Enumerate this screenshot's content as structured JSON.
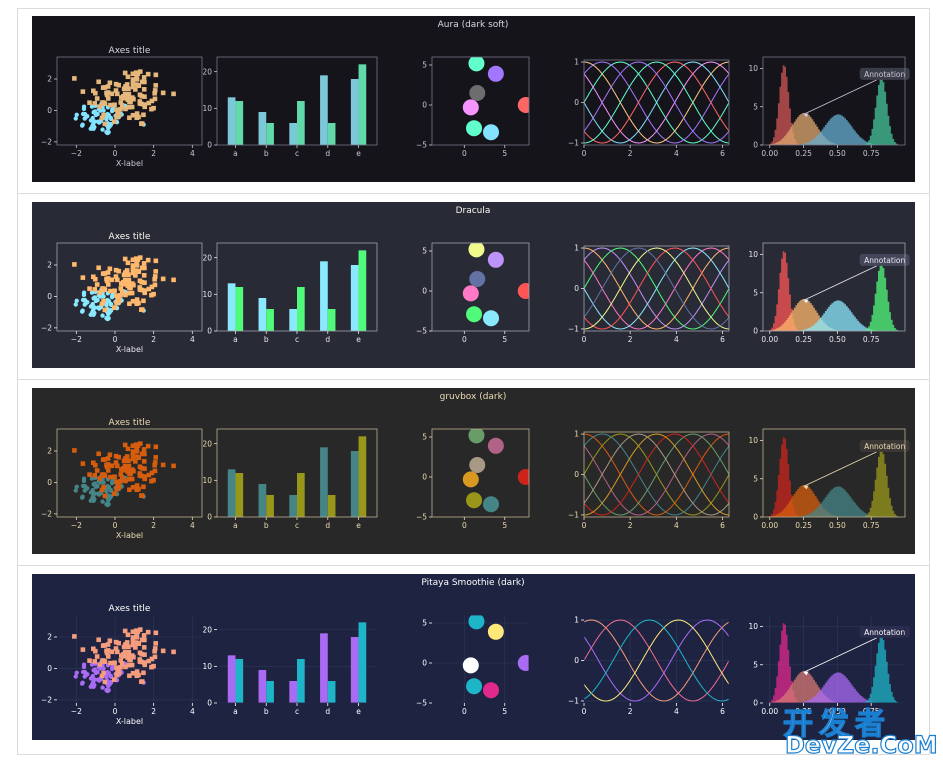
{
  "panels": [
    {
      "title": "Aura (dark soft)",
      "bg": "#15141b",
      "fg": "#c9c6d6",
      "spine": "#777486",
      "title_color": "#d8d6e3",
      "grid": null,
      "colors": [
        "#61ffca",
        "#a277ff",
        "#ffca85",
        "#f694ff",
        "#82e2ff",
        "#ff6767"
      ],
      "scatter_colors": [
        "#82e2ff",
        "#e6b77a",
        "#d9a063"
      ],
      "bar_colors": [
        "#7cc8d8",
        "#61d9a8"
      ],
      "circle_colors": [
        "#61ffca",
        "#82e2ff",
        "#f694ff",
        "#6d6d6d",
        "#a277ff",
        "#ff6767"
      ],
      "hist_colors": [
        "#d05555",
        "#e0a870",
        "#66aed0",
        "#45c49a"
      ],
      "annot_bg": "#3a3d48"
    },
    {
      "title": "Dracula",
      "bg": "#282a36",
      "fg": "#e8e8f0",
      "spine": "#a0a2b0",
      "title_color": "#f8f8f2",
      "grid": null,
      "colors": [
        "#50fa7b",
        "#bd93f9",
        "#ffb86c",
        "#ff79c6",
        "#8be9fd",
        "#ff5555",
        "#f1fa8c",
        "#6272a4"
      ],
      "scatter_colors": [
        "#8be9fd",
        "#ffb86c",
        "#ffb86c"
      ],
      "bar_colors": [
        "#8be9fd",
        "#50fa7b"
      ],
      "circle_colors": [
        "#50fa7b",
        "#8be9fd",
        "#ff79c6",
        "#6272a4",
        "#bd93f9",
        "#ff5555",
        "#f1fa8c"
      ],
      "hist_colors": [
        "#ff5555",
        "#ffb86c",
        "#8be9fd",
        "#50fa7b"
      ],
      "annot_bg": "#44475a"
    },
    {
      "title": "gruvbox (dark)",
      "bg": "#282828",
      "fg": "#ebdbb2",
      "spine": "#bdae93",
      "title_color": "#ebdbb2",
      "grid": null,
      "colors": [
        "#98971a",
        "#458588",
        "#d65d0e",
        "#b16286",
        "#689d6a",
        "#cc241d",
        "#d79921",
        "#a89984"
      ],
      "scatter_colors": [
        "#458588",
        "#d65d0e",
        "#d65d0e"
      ],
      "bar_colors": [
        "#458588",
        "#98971a"
      ],
      "circle_colors": [
        "#98971a",
        "#458588",
        "#d79921",
        "#a89984",
        "#b16286",
        "#cc241d",
        "#689d6a"
      ],
      "hist_colors": [
        "#cc241d",
        "#d65d0e",
        "#458588",
        "#98971a"
      ],
      "annot_bg": "#3c3836"
    },
    {
      "title": "Pitaya Smoothie (dark)",
      "bg": "#1d2340",
      "fg": "#fefeff",
      "spine": "#1d2340",
      "title_color": "#fefeff",
      "grid": "#2c3356",
      "colors": [
        "#f26c93",
        "#f69d7e",
        "#a96bf4",
        "#ffe97a",
        "#1fb5c8",
        "#ffffff"
      ],
      "scatter_colors": [
        "#a96bf4",
        "#f69d7e",
        "#f69d7e"
      ],
      "bar_colors": [
        "#a96bf4",
        "#1fb5c8"
      ],
      "circle_colors": [
        "#a96bf4",
        "#1fb5c8",
        "#ffffff",
        "#ffe97a",
        "#e0288d"
      ],
      "hist_colors": [
        "#e0288d",
        "#d87a74",
        "#a96bf4",
        "#1fb5c8"
      ],
      "annot_bg": "#2c2c4e"
    }
  ],
  "labels": {
    "axes_title": "Axes title",
    "xlabel": "X-label",
    "annotation": "Annotation"
  },
  "watermark": {
    "cn": "开发者",
    "en": "DevZe.CoM"
  },
  "chart_data": [
    {
      "type": "scatter",
      "title": "Axes title",
      "xlabel": "X-label",
      "xlim": [
        -3,
        4.5
      ],
      "ylim": [
        -2.2,
        3.4
      ],
      "xticks": [
        -2,
        0,
        2,
        4
      ],
      "yticks": [
        -2,
        0,
        2
      ]
    },
    {
      "type": "bar",
      "categories": [
        "a",
        "b",
        "c",
        "d",
        "e"
      ],
      "series": [
        {
          "values": [
            13,
            9,
            6,
            19,
            18
          ]
        },
        {
          "values": [
            12,
            6,
            12,
            6,
            22
          ]
        }
      ],
      "ylim": [
        0,
        24
      ],
      "yticks": [
        0,
        10,
        20
      ]
    },
    {
      "type": "scatter",
      "xlim": [
        -4,
        8
      ],
      "ylim": [
        -5,
        6
      ],
      "xticks": [
        0,
        5
      ],
      "yticks": [
        -5,
        0,
        5
      ],
      "points": [
        {
          "x": 1.2,
          "y": -2.9
        },
        {
          "x": 3.3,
          "y": -3.4
        },
        {
          "x": 0.8,
          "y": -0.3
        },
        {
          "x": 1.6,
          "y": 1.5
        },
        {
          "x": 3.9,
          "y": 3.9
        },
        {
          "x": 7.6,
          "y": 0.0
        },
        {
          "x": 1.5,
          "y": 5.2
        }
      ]
    },
    {
      "type": "line",
      "xlim": [
        0,
        6.28
      ],
      "ylim": [
        -1.05,
        1.05
      ],
      "xticks": [
        0,
        2,
        4,
        6
      ],
      "yticks": [
        -1,
        0,
        1
      ],
      "series_count": 8
    },
    {
      "type": "bar",
      "subtype": "histogram",
      "xlim": [
        -0.05,
        1.0
      ],
      "ylim": [
        0,
        11.5
      ],
      "xticks": [
        0.0,
        0.25,
        0.5,
        0.75
      ],
      "yticks": [
        0,
        5,
        10
      ],
      "distributions": [
        {
          "mean": 0.1,
          "sd": 0.035,
          "peak": 10.5
        },
        {
          "mean": 0.25,
          "sd": 0.09,
          "peak": 4.2
        },
        {
          "mean": 0.5,
          "sd": 0.1,
          "peak": 4.0
        },
        {
          "mean": 0.82,
          "sd": 0.04,
          "peak": 8.9
        }
      ],
      "annotation": {
        "text": "Annotation",
        "xy": [
          0.25,
          4.0
        ]
      }
    }
  ]
}
